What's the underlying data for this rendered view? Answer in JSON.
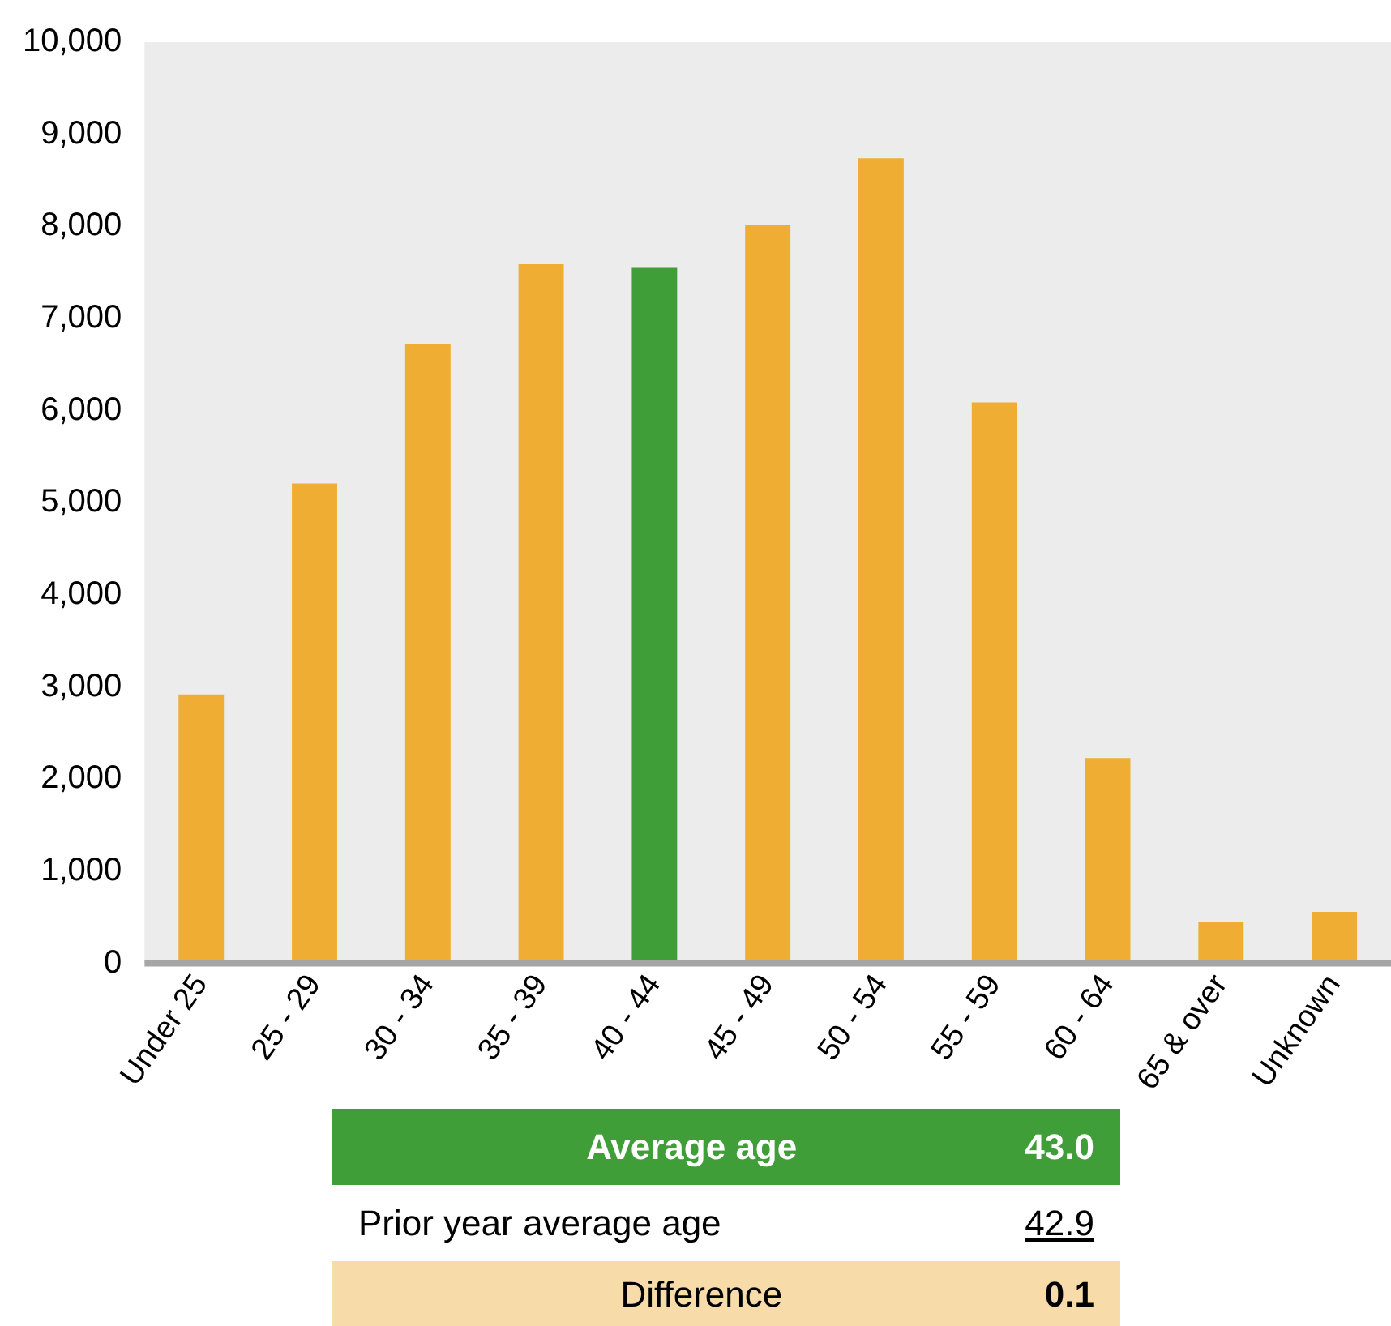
{
  "chart_data": {
    "type": "bar",
    "categories": [
      "Under 25",
      "25 - 29",
      "30 - 34",
      "35 - 39",
      "40 - 44",
      "45 - 49",
      "50 - 54",
      "55 - 59",
      "60 - 64",
      "65 & over",
      "Unknown"
    ],
    "values": [
      2920,
      5210,
      6720,
      7590,
      7550,
      8020,
      8740,
      6090,
      2230,
      450,
      560
    ],
    "colors": [
      "#efae33",
      "#efae33",
      "#efae33",
      "#efae33",
      "#3f9e37",
      "#efae33",
      "#efae33",
      "#efae33",
      "#efae33",
      "#efae33",
      "#efae33"
    ],
    "ylim": [
      0,
      10000
    ],
    "yticks": [
      {
        "value": 0,
        "label": "0"
      },
      {
        "value": 1000,
        "label": "1,000"
      },
      {
        "value": 2000,
        "label": "2,000"
      },
      {
        "value": 3000,
        "label": "3,000"
      },
      {
        "value": 4000,
        "label": "4,000"
      },
      {
        "value": 5000,
        "label": "5,000"
      },
      {
        "value": 6000,
        "label": "6,000"
      },
      {
        "value": 7000,
        "label": "7,000"
      },
      {
        "value": 8000,
        "label": "8,000"
      },
      {
        "value": 9000,
        "label": "9,000"
      },
      {
        "value": 10000,
        "label": "10,000"
      }
    ],
    "grid": false,
    "legend": false,
    "annotations": [
      "Average age",
      "43.0",
      "Prior year average age",
      "42.9",
      "Difference",
      "0.1"
    ]
  }
}
